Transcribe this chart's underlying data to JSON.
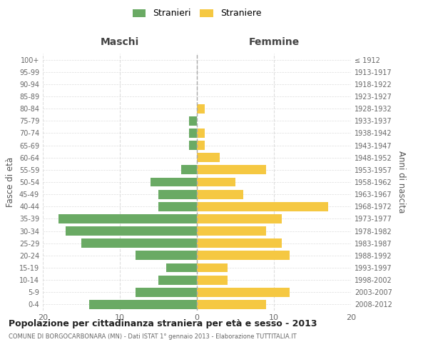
{
  "age_groups": [
    "0-4",
    "5-9",
    "10-14",
    "15-19",
    "20-24",
    "25-29",
    "30-34",
    "35-39",
    "40-44",
    "45-49",
    "50-54",
    "55-59",
    "60-64",
    "65-69",
    "70-74",
    "75-79",
    "80-84",
    "85-89",
    "90-94",
    "95-99",
    "100+"
  ],
  "birth_years": [
    "2008-2012",
    "2003-2007",
    "1998-2002",
    "1993-1997",
    "1988-1992",
    "1983-1987",
    "1978-1982",
    "1973-1977",
    "1968-1972",
    "1963-1967",
    "1958-1962",
    "1953-1957",
    "1948-1952",
    "1943-1947",
    "1938-1942",
    "1933-1937",
    "1928-1932",
    "1923-1927",
    "1918-1922",
    "1913-1917",
    "≤ 1912"
  ],
  "maschi": [
    14,
    8,
    5,
    4,
    8,
    15,
    17,
    18,
    5,
    5,
    6,
    2,
    0,
    1,
    1,
    1,
    0,
    0,
    0,
    0,
    0
  ],
  "femmine": [
    9,
    12,
    4,
    4,
    12,
    11,
    9,
    11,
    17,
    6,
    5,
    9,
    3,
    1,
    1,
    0,
    1,
    0,
    0,
    0,
    0
  ],
  "maschi_color": "#6aaa64",
  "femmine_color": "#f5c842",
  "title": "Popolazione per cittadinanza straniera per età e sesso - 2013",
  "subtitle": "COMUNE DI BORGOCARBONARA (MN) - Dati ISTAT 1° gennaio 2013 - Elaborazione TUTTITALIA.IT",
  "xlabel_left": "Maschi",
  "xlabel_right": "Femmine",
  "ylabel_left": "Fasce di età",
  "ylabel_right": "Anni di nascita",
  "legend_maschi": "Stranieri",
  "legend_femmine": "Straniere",
  "xlim": 20,
  "bg_color": "#ffffff",
  "grid_color": "#dddddd",
  "bar_height": 0.75
}
